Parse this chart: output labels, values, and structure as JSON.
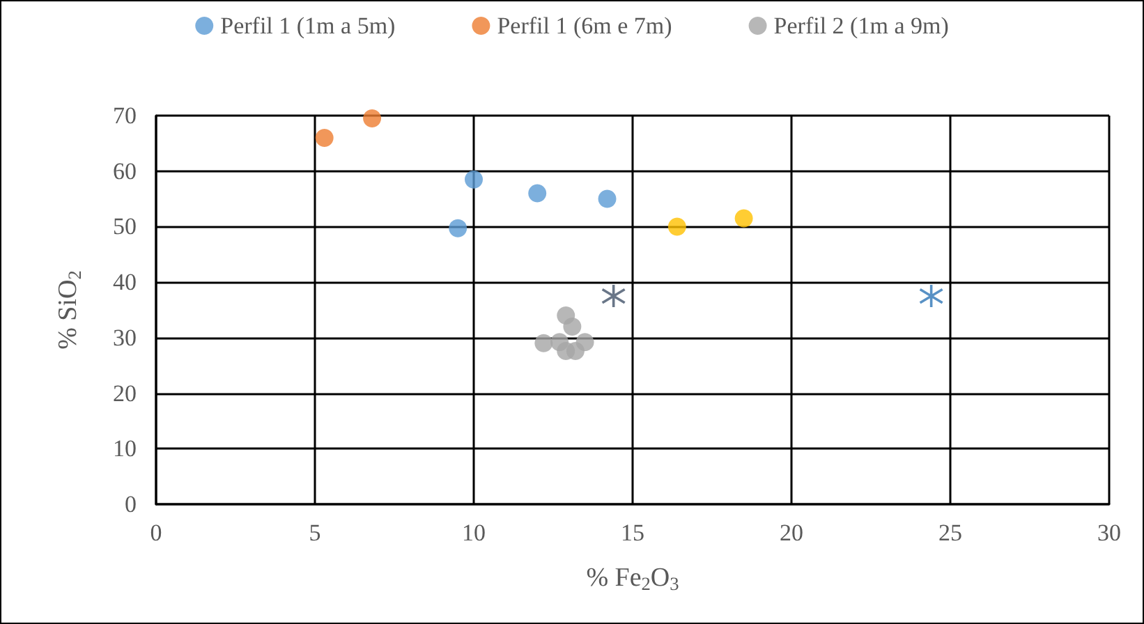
{
  "chart_data": {
    "type": "scatter",
    "xlabel": "% Fe$_{2}$O$_{3}$",
    "ylabel": "% SiO$_{2}$",
    "xlim": [
      0,
      30
    ],
    "xticks": [
      0,
      5,
      10,
      15,
      20,
      25,
      30
    ],
    "ylim": [
      0,
      70
    ],
    "yticks": [
      0,
      10,
      20,
      30,
      40,
      50,
      60,
      70
    ],
    "grid": true,
    "legend": "top",
    "marker": "circle",
    "series": [
      {
        "name": "Perfil 1 (1m a 5m)",
        "color": "#5b9bd5",
        "x": [
          9.5,
          10,
          12,
          14.2
        ],
        "values": [
          49.7,
          58.5,
          56,
          55
        ]
      },
      {
        "name": "Perfil 1 (6m e 7m)",
        "color": "#ed7d31",
        "x": [
          5.3,
          6.8
        ],
        "values": [
          66,
          69.5
        ]
      },
      {
        "name": "Perfil 2 (1m a 9m)",
        "color": "#a5a5a5",
        "x": [
          12.9,
          13.1,
          12.2,
          12.7,
          13.5,
          12.9,
          13.2
        ],
        "values": [
          34,
          32,
          29,
          29.2,
          29.2,
          27.6,
          27.6
        ]
      },
      {
        "color": "#ffc000",
        "x": [
          16.4,
          18.5
        ],
        "values": [
          50,
          51.5
        ]
      },
      {
        "color": "#44546a",
        "marker": "cross",
        "x": [
          14.4
        ],
        "values": [
          37.5
        ]
      },
      {
        "color": "#2e75b6",
        "marker": "cross",
        "x": [
          24.4
        ],
        "values": [
          37.5
        ]
      }
    ]
  }
}
